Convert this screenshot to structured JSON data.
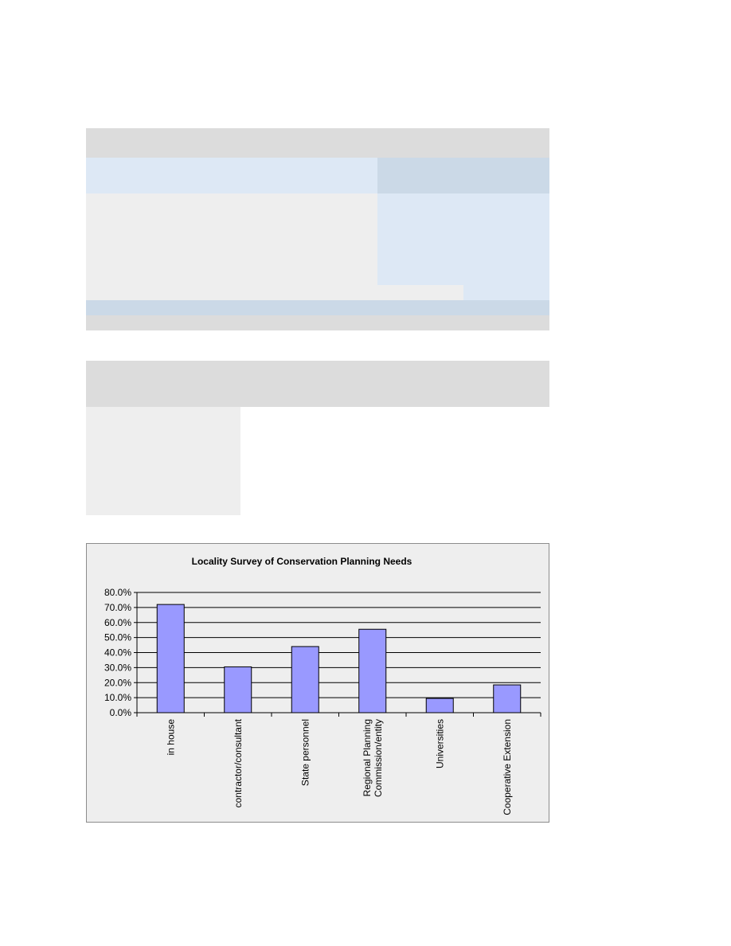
{
  "colors": {
    "header_gray": "#dcdcdc",
    "light_blue": "#dde8f5",
    "mid_blue": "#cbd9e7",
    "light_gray": "#eeeeee",
    "bar_fill": "#9999ff",
    "gridline": "#000000"
  },
  "chart_data": {
    "type": "bar",
    "title": "Locality Survey of Conservation Planning Needs",
    "xlabel": "",
    "ylabel": "",
    "categories": [
      "in house",
      "contractor/consultant",
      "State personnel",
      "Regional Planning Commission/entity",
      "Universities",
      "Cooperative Extension"
    ],
    "category_lines": [
      [
        "in house"
      ],
      [
        "contractor/consultant"
      ],
      [
        "State personnel"
      ],
      [
        "Regional Planning",
        "Commission/entity"
      ],
      [
        "Universities"
      ],
      [
        "Cooperative Extension"
      ]
    ],
    "values": [
      72.0,
      30.5,
      44.0,
      55.5,
      9.5,
      18.5
    ],
    "ylim": [
      0,
      80
    ],
    "yticks": [
      "0.0%",
      "10.0%",
      "20.0%",
      "30.0%",
      "40.0%",
      "50.0%",
      "60.0%",
      "70.0%",
      "80.0%"
    ],
    "grid": true,
    "legend": "none"
  }
}
